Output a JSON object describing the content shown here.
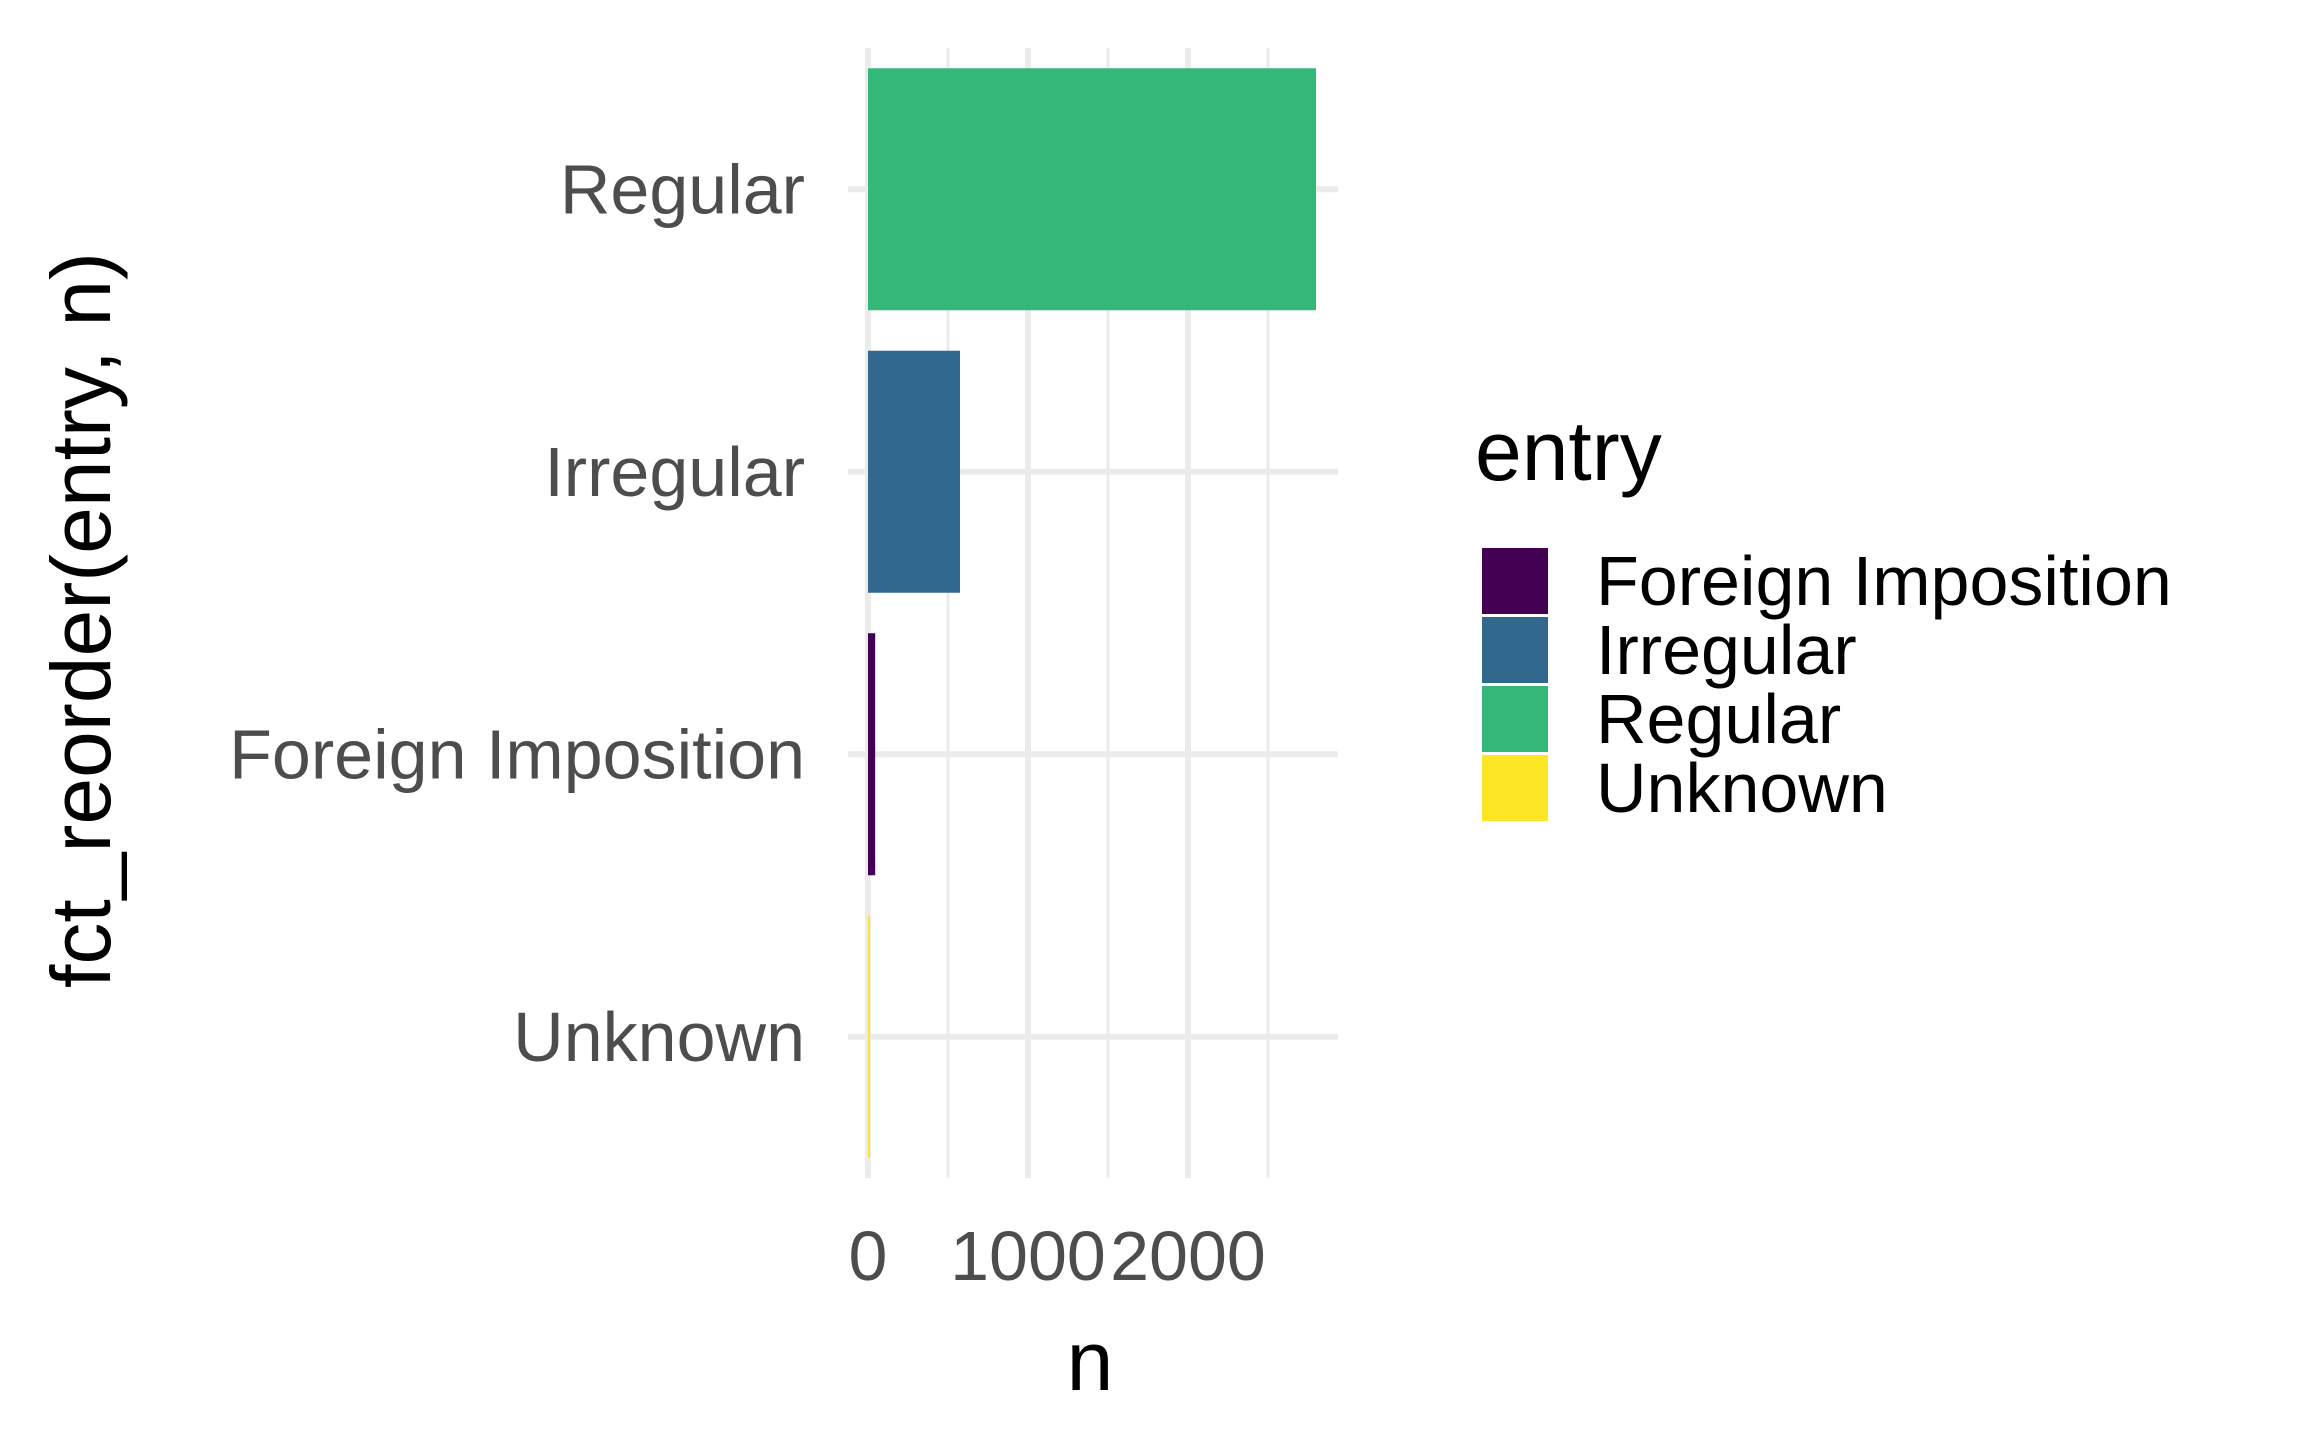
{
  "chart_data": {
    "type": "bar",
    "orientation": "horizontal",
    "categories": [
      "Unknown",
      "Foreign Imposition",
      "Irregular",
      "Regular"
    ],
    "values": [
      5,
      45,
      575,
      2800
    ],
    "colors": [
      "#FDE725",
      "#440154",
      "#31688E",
      "#35B779"
    ],
    "xlabel": "n",
    "ylabel": "fct_reorder(entry, n)",
    "xlim": [
      0,
      2950
    ],
    "xticks": [
      0,
      1000,
      2000
    ],
    "xtick_labels": [
      "0",
      "1000",
      "2000"
    ],
    "grid": true,
    "legend": {
      "title": "entry",
      "placement": "right",
      "items": [
        {
          "label": "Foreign Imposition",
          "color": "#440154"
        },
        {
          "label": "Irregular",
          "color": "#31688E"
        },
        {
          "label": "Regular",
          "color": "#35B779"
        },
        {
          "label": "Unknown",
          "color": "#FDE725"
        }
      ]
    }
  }
}
